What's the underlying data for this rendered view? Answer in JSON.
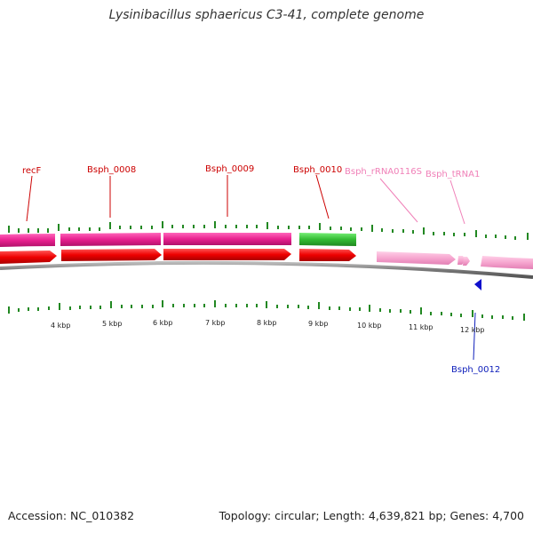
{
  "title": "Lysinibacillus sphaericus C3-41, complete genome",
  "footer": {
    "accession": "Accession: NC_010382",
    "topology": "Topology: circular; Length: 4,639,821 bp; Genes: 4,700"
  },
  "colors": {
    "red_gene": "#dd0000",
    "pink_gene": "#e8218f",
    "green_gene": "#33bb33",
    "light_pink_gene": "#f6a6cf",
    "blue_gene": "#1010cc",
    "tick": "#228822",
    "backbone": "#888888"
  },
  "gene_labels": [
    {
      "text": "recF",
      "color": "#cc0000"
    },
    {
      "text": "Bsph_0008",
      "color": "#cc0000"
    },
    {
      "text": "Bsph_0009",
      "color": "#cc0000"
    },
    {
      "text": "Bsph_0010",
      "color": "#cc0000"
    },
    {
      "text": "Bsph_rRNA0116S",
      "color": "#f080b8"
    },
    {
      "text": "Bsph_tRNA1",
      "color": "#f080b8"
    },
    {
      "text": "Bsph_0012",
      "color": "#1020bb"
    }
  ],
  "ticks": [
    "4 kbp",
    "5 kbp",
    "6 kbp",
    "7 kbp",
    "8 kbp",
    "9 kbp",
    "10 kbp",
    "11 kbp",
    "12 kbp"
  ]
}
